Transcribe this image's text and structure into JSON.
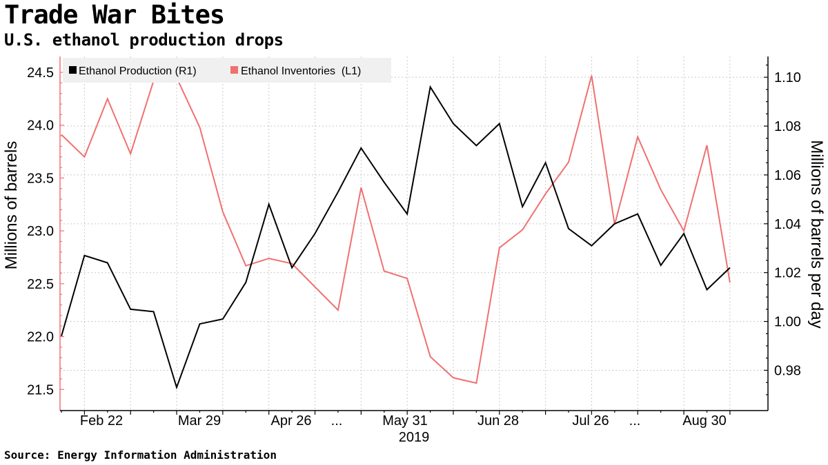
{
  "title": "Trade War Bites",
  "subtitle": "U.S. ethanol production drops",
  "source": "Source: Energy Information Administration",
  "chart_data": {
    "type": "line",
    "x": [
      "Feb 15",
      "Feb 22",
      "Mar 1",
      "Mar 8",
      "Mar 15",
      "Mar 22",
      "Mar 29",
      "Apr 5",
      "Apr 12",
      "Apr 19",
      "Apr 26",
      "May 3",
      "May 10",
      "May 17",
      "May 24",
      "May 31",
      "Jun 7",
      "Jun 14",
      "Jun 21",
      "Jun 28",
      "Jul 5",
      "Jul 12",
      "Jul 19",
      "Jul 26",
      "Aug 2",
      "Aug 9",
      "Aug 16",
      "Aug 23",
      "Aug 30",
      "Sep 6"
    ],
    "x_tick_labels": [
      "Feb 22",
      "Mar 29",
      "Apr 26",
      "...",
      "May 31",
      "Jun 28",
      "Jul 26",
      "...",
      "Aug 30"
    ],
    "x_year_label": "2019",
    "series": [
      {
        "name": "Ethanol Production (R1)",
        "axis": "right",
        "color": "#000000",
        "values": [
          0.994,
          1.027,
          1.024,
          1.005,
          1.004,
          0.973,
          0.999,
          1.001,
          1.016,
          1.048,
          1.022,
          1.036,
          1.053,
          1.071,
          1.057,
          1.044,
          1.096,
          1.081,
          1.072,
          1.081,
          1.047,
          1.065,
          1.038,
          1.031,
          1.04,
          1.044,
          1.023,
          1.036,
          1.013,
          1.022
        ]
      },
      {
        "name": "Ethanol Inventories  (L1)",
        "axis": "left",
        "color": "#f07070",
        "values": [
          23.91,
          23.7,
          24.25,
          23.73,
          24.42,
          24.45,
          23.98,
          23.18,
          22.67,
          22.74,
          22.69,
          22.47,
          22.25,
          23.41,
          22.62,
          22.55,
          21.81,
          21.61,
          21.56,
          22.84,
          23.01,
          23.35,
          23.65,
          24.47,
          23.06,
          23.89,
          23.39,
          23.0,
          23.81,
          22.51
        ]
      }
    ],
    "left_axis": {
      "label": "Millions of barrels",
      "range": [
        21.3,
        24.65
      ],
      "ticks": [
        21.5,
        22.0,
        22.5,
        23.0,
        23.5,
        24.0,
        24.5
      ],
      "tick_labels": [
        "21.5",
        "22.0",
        "22.5",
        "23.0",
        "23.5",
        "24.0",
        "24.5"
      ]
    },
    "right_axis": {
      "label": "Millions of barrels per day",
      "range": [
        0.9635,
        1.1085
      ],
      "ticks": [
        0.98,
        1.0,
        1.02,
        1.04,
        1.06,
        1.08,
        1.1
      ],
      "tick_labels": [
        "0.98",
        "1.00",
        "1.02",
        "1.04",
        "1.06",
        "1.08",
        "1.10"
      ]
    },
    "grid": true,
    "legend_position": "top-left"
  }
}
